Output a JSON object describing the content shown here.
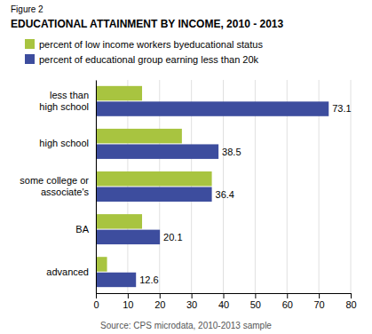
{
  "chart_data": {
    "type": "bar",
    "orientation": "horizontal",
    "title": "EDUCATIONAL ATTAINMENT BY INCOME, 2010 - 2013",
    "annotations": [
      "Figure 2",
      "Source: CPS microdata, 2010-2013 sample"
    ],
    "categories": [
      "less than\nhigh school",
      "high school",
      "some college or\nassociate's",
      "BA",
      "advanced"
    ],
    "series": [
      {
        "name": "percent of low income workers byeducational status",
        "color": "#a8c440",
        "data_labels": false,
        "values": [
          14.5,
          27.0,
          36.4,
          14.5,
          3.5
        ]
      },
      {
        "name": "percent of educational group earning less than 20k",
        "color": "#3d4d9e",
        "data_labels": true,
        "values": [
          73.1,
          38.5,
          36.4,
          20.1,
          12.6
        ]
      }
    ],
    "xlim": [
      0,
      80
    ],
    "xticks": [
      0,
      10,
      20,
      30,
      40,
      50,
      60,
      70,
      80
    ],
    "grid": true,
    "legend": "top-left"
  }
}
